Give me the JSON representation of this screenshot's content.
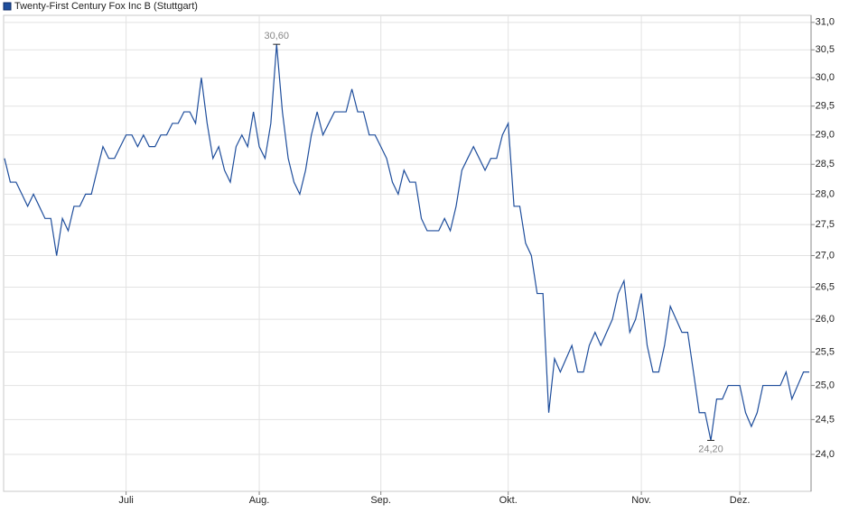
{
  "chart_data": {
    "type": "line",
    "log": true,
    "grid": true,
    "legend": "top-left",
    "categories": [
      null,
      null,
      null,
      null,
      null,
      null,
      null,
      null,
      null,
      null,
      null,
      null,
      null,
      null,
      null,
      null,
      null,
      null,
      null,
      null,
      null,
      "Juli",
      null,
      null,
      null,
      null,
      null,
      null,
      null,
      null,
      null,
      null,
      null,
      null,
      null,
      null,
      null,
      null,
      null,
      null,
      null,
      null,
      null,
      null,
      "Aug.",
      null,
      null,
      null,
      null,
      null,
      null,
      null,
      null,
      null,
      null,
      null,
      null,
      null,
      null,
      null,
      null,
      null,
      null,
      null,
      null,
      "Sep.",
      null,
      null,
      null,
      null,
      null,
      null,
      null,
      null,
      null,
      null,
      null,
      null,
      null,
      null,
      null,
      null,
      null,
      null,
      null,
      null,
      null,
      "Okt.",
      null,
      null,
      null,
      null,
      null,
      null,
      null,
      null,
      null,
      null,
      null,
      null,
      null,
      null,
      null,
      null,
      null,
      null,
      null,
      null,
      null,
      null,
      "Nov.",
      null,
      null,
      null,
      null,
      null,
      null,
      null,
      null,
      null,
      null,
      null,
      null,
      null,
      null,
      null,
      null,
      "Dez.",
      null,
      null,
      null,
      null,
      null,
      null,
      null,
      null,
      null,
      null,
      null,
      null
    ],
    "series": [
      {
        "name": "Twenty-First Century Fox Inc B (Stuttgart)",
        "color": "#1f4e9c",
        "values": [
          28.6,
          28.2,
          28.2,
          28.0,
          27.8,
          28.0,
          27.8,
          27.6,
          27.6,
          27.0,
          27.6,
          27.4,
          27.8,
          27.8,
          28.0,
          28.0,
          28.4,
          28.8,
          28.6,
          28.6,
          28.8,
          29.0,
          29.0,
          28.8,
          29.0,
          28.8,
          28.8,
          29.0,
          29.0,
          29.2,
          29.2,
          29.4,
          29.4,
          29.2,
          30.0,
          29.2,
          28.6,
          28.8,
          28.4,
          28.2,
          28.8,
          29.0,
          28.8,
          29.4,
          28.8,
          28.6,
          29.2,
          30.6,
          29.4,
          28.6,
          28.2,
          28.0,
          28.4,
          29.0,
          29.4,
          29.0,
          29.2,
          29.4,
          29.4,
          29.4,
          29.8,
          29.4,
          29.4,
          29.0,
          29.0,
          28.8,
          28.6,
          28.2,
          28.0,
          28.4,
          28.2,
          28.2,
          27.6,
          27.4,
          27.4,
          27.4,
          27.6,
          27.4,
          27.8,
          28.4,
          28.6,
          28.8,
          28.6,
          28.4,
          28.6,
          28.6,
          29.0,
          29.2,
          27.8,
          27.8,
          27.2,
          27.0,
          26.4,
          26.4,
          24.6,
          25.4,
          25.2,
          25.4,
          25.6,
          25.2,
          25.2,
          25.6,
          25.8,
          25.6,
          25.8,
          26.0,
          26.4,
          26.6,
          25.8,
          26.0,
          26.4,
          25.6,
          25.2,
          25.2,
          25.6,
          26.2,
          26.0,
          25.8,
          25.8,
          25.2,
          24.6,
          24.6,
          24.2,
          24.8,
          24.8,
          25.0,
          25.0,
          25.0,
          24.6,
          24.4,
          24.6,
          25.0,
          25.0,
          25.0,
          25.0,
          25.2,
          24.8,
          25.0,
          25.2,
          25.2
        ]
      }
    ],
    "annotations": [
      {
        "label": "30,60",
        "value": 30.6
      },
      {
        "label": "24,20",
        "value": 24.2
      }
    ],
    "ylim": [
      23.48,
      31.13
    ],
    "yticks": [
      {
        "value": 24,
        "label": "24,0"
      },
      {
        "value": 24.5,
        "label": "24,5"
      },
      {
        "value": 25,
        "label": "25,0"
      },
      {
        "value": 25.5,
        "label": "25,5"
      },
      {
        "value": 26,
        "label": "26,0"
      },
      {
        "value": 26.5,
        "label": "26,5"
      },
      {
        "value": 27,
        "label": "27,0"
      },
      {
        "value": 27.5,
        "label": "27,5"
      },
      {
        "value": 28,
        "label": "28,0"
      },
      {
        "value": 28.5,
        "label": "28,5"
      },
      {
        "value": 29,
        "label": "29,0"
      },
      {
        "value": 29.5,
        "label": "29,5"
      },
      {
        "value": 30,
        "label": "30,0"
      },
      {
        "value": 30.5,
        "label": "30,5"
      },
      {
        "value": 31,
        "label": "31,0"
      }
    ]
  }
}
